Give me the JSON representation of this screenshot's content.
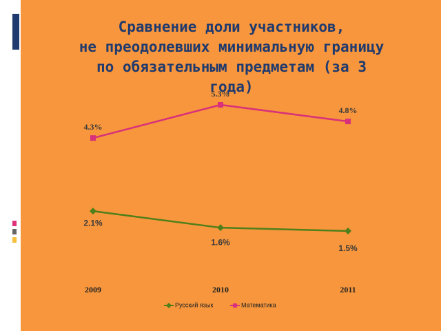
{
  "chart_data": {
    "type": "line",
    "title": [
      "Сравнение доли участников,",
      "не преодолевших минимальную границу",
      "по обязательным предметам (за 3",
      "года)"
    ],
    "categories": [
      "2009",
      "2010",
      "2011"
    ],
    "series": [
      {
        "name": "Русский язык",
        "color": "#4f7f1a",
        "values": [
          2.1,
          1.6,
          1.5
        ],
        "value_labels": [
          "2.1%",
          "1.6%",
          "1.5%"
        ]
      },
      {
        "name": "Математика",
        "color": "#d8307a",
        "values": [
          4.3,
          5.3,
          4.8
        ],
        "value_labels": [
          "4.3%",
          "5.3%",
          "4.8%"
        ]
      }
    ]
  }
}
